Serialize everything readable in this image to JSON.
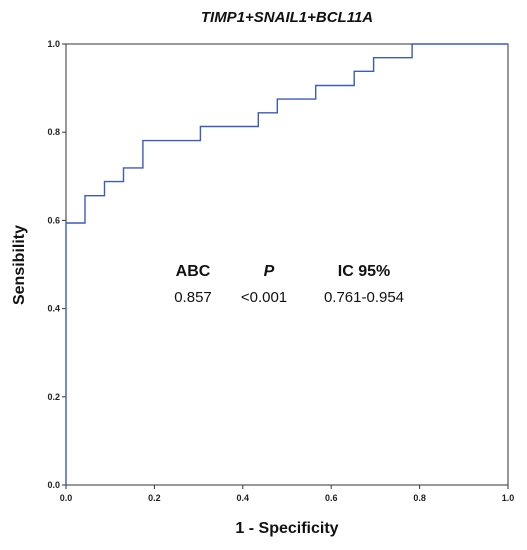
{
  "chart_data": {
    "type": "line",
    "title": "TIMP1+SNAIL1+BCL11A",
    "xlabel": "1 - Specificity",
    "ylabel": "Sensibility",
    "xlim": [
      0,
      1
    ],
    "ylim": [
      0,
      1
    ],
    "x_ticks": [
      "0.0",
      "0.2",
      "0.4",
      "0.6",
      "0.8",
      "1.0"
    ],
    "y_ticks": [
      "0.0",
      "0.2",
      "0.4",
      "0.6",
      "0.8",
      "1.0"
    ],
    "grid": false,
    "line_color": "#3a5bbf",
    "series": [
      {
        "points": [
          [
            0.0,
            0.0
          ],
          [
            0.0,
            0.594
          ],
          [
            0.043,
            0.594
          ],
          [
            0.043,
            0.656
          ],
          [
            0.087,
            0.656
          ],
          [
            0.087,
            0.688
          ],
          [
            0.13,
            0.688
          ],
          [
            0.13,
            0.719
          ],
          [
            0.174,
            0.719
          ],
          [
            0.174,
            0.781
          ],
          [
            0.304,
            0.781
          ],
          [
            0.304,
            0.813
          ],
          [
            0.435,
            0.813
          ],
          [
            0.435,
            0.844
          ],
          [
            0.478,
            0.844
          ],
          [
            0.478,
            0.875
          ],
          [
            0.565,
            0.875
          ],
          [
            0.565,
            0.906
          ],
          [
            0.652,
            0.906
          ],
          [
            0.652,
            0.938
          ],
          [
            0.696,
            0.938
          ],
          [
            0.696,
            0.969
          ],
          [
            0.783,
            0.969
          ],
          [
            0.783,
            1.0
          ],
          [
            1.0,
            1.0
          ]
        ]
      }
    ],
    "stats": {
      "headers": [
        "ABC",
        "P",
        "IC 95%"
      ],
      "values": [
        "0.857",
        "<0.001",
        "0.761-0.954"
      ]
    }
  }
}
